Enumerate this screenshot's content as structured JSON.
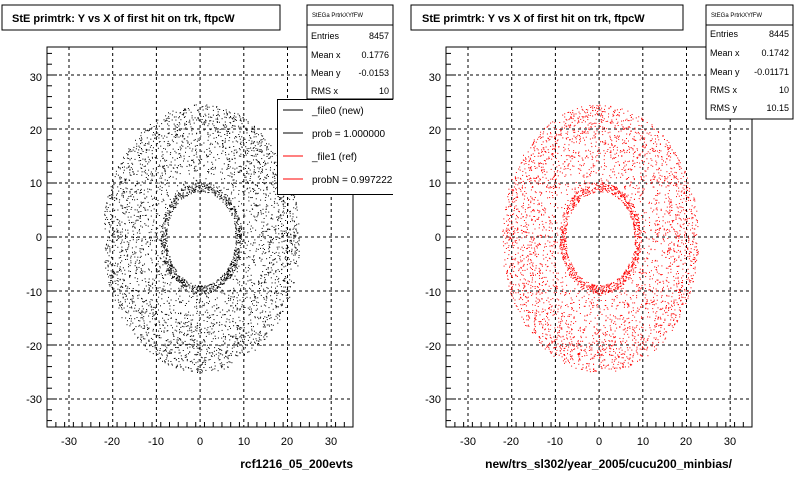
{
  "colors": {
    "black_points": "#000000",
    "red_points": "#ff0000",
    "frame": "#000000"
  },
  "footer": {
    "text": ""
  },
  "chart_data": [
    {
      "type": "scatter",
      "title": "StE primtrk: Y vs X of first hit on trk, ftpcW",
      "xlabel": "rcf1216_05_200evts",
      "ylabel": "",
      "xlim": [
        -35,
        35
      ],
      "ylim": [
        -35,
        35
      ],
      "xticks": [
        -30,
        -20,
        -10,
        0,
        10,
        20,
        30
      ],
      "yticks": [
        -30,
        -20,
        -10,
        0,
        10,
        20,
        30
      ],
      "grid": true,
      "point_color": "#000000",
      "distribution": {
        "inner_radius": 8,
        "outer_radius": 23,
        "center_x": 0.2,
        "center_y": -0.2
      },
      "series": [
        {
          "name": "_file0 (new)",
          "entries": 8457
        }
      ],
      "stats": {
        "name": "StEGa PrtrkXYfFW",
        "rows": [
          {
            "label": "Entries",
            "value": "8457"
          },
          {
            "label": "Mean x",
            "value": "0.1776"
          },
          {
            "label": "Mean y",
            "value": "-0.0153"
          },
          {
            "label": "RMS x",
            "value": "10"
          }
        ]
      },
      "legend": {
        "entries": [
          {
            "label": "_file0 (new)",
            "color": "#000000"
          },
          {
            "label": "prob = 1.000000",
            "color": "#000000"
          },
          {
            "label": "_file1 (ref)",
            "color": "#ff0000"
          },
          {
            "label": "probN = 0.997222",
            "color": "#ff0000"
          }
        ]
      }
    },
    {
      "type": "scatter",
      "title": "StE primtrk: Y vs X of first hit on trk, ftpcW",
      "xlabel": "new/trs_sl302/year_2005/cucu200_minbias/",
      "ylabel": "",
      "xlim": [
        -35,
        35
      ],
      "ylim": [
        -35,
        35
      ],
      "xticks": [
        -30,
        -20,
        -10,
        0,
        10,
        20,
        30
      ],
      "yticks": [
        -30,
        -20,
        -10,
        0,
        10,
        20,
        30
      ],
      "grid": true,
      "point_color": "#ff0000",
      "distribution": {
        "inner_radius": 8,
        "outer_radius": 23,
        "center_x": 0.2,
        "center_y": -0.2
      },
      "series": [
        {
          "name": "_file1 (ref)",
          "entries": 8445
        }
      ],
      "stats": {
        "name": "StEGa PrtrkXYfFW",
        "rows": [
          {
            "label": "Entries",
            "value": "8445"
          },
          {
            "label": "Mean x",
            "value": "0.1742"
          },
          {
            "label": "Mean y",
            "value": "-0.01171"
          },
          {
            "label": "RMS x",
            "value": "10"
          },
          {
            "label": "RMS y",
            "value": "10.15"
          }
        ]
      }
    }
  ]
}
